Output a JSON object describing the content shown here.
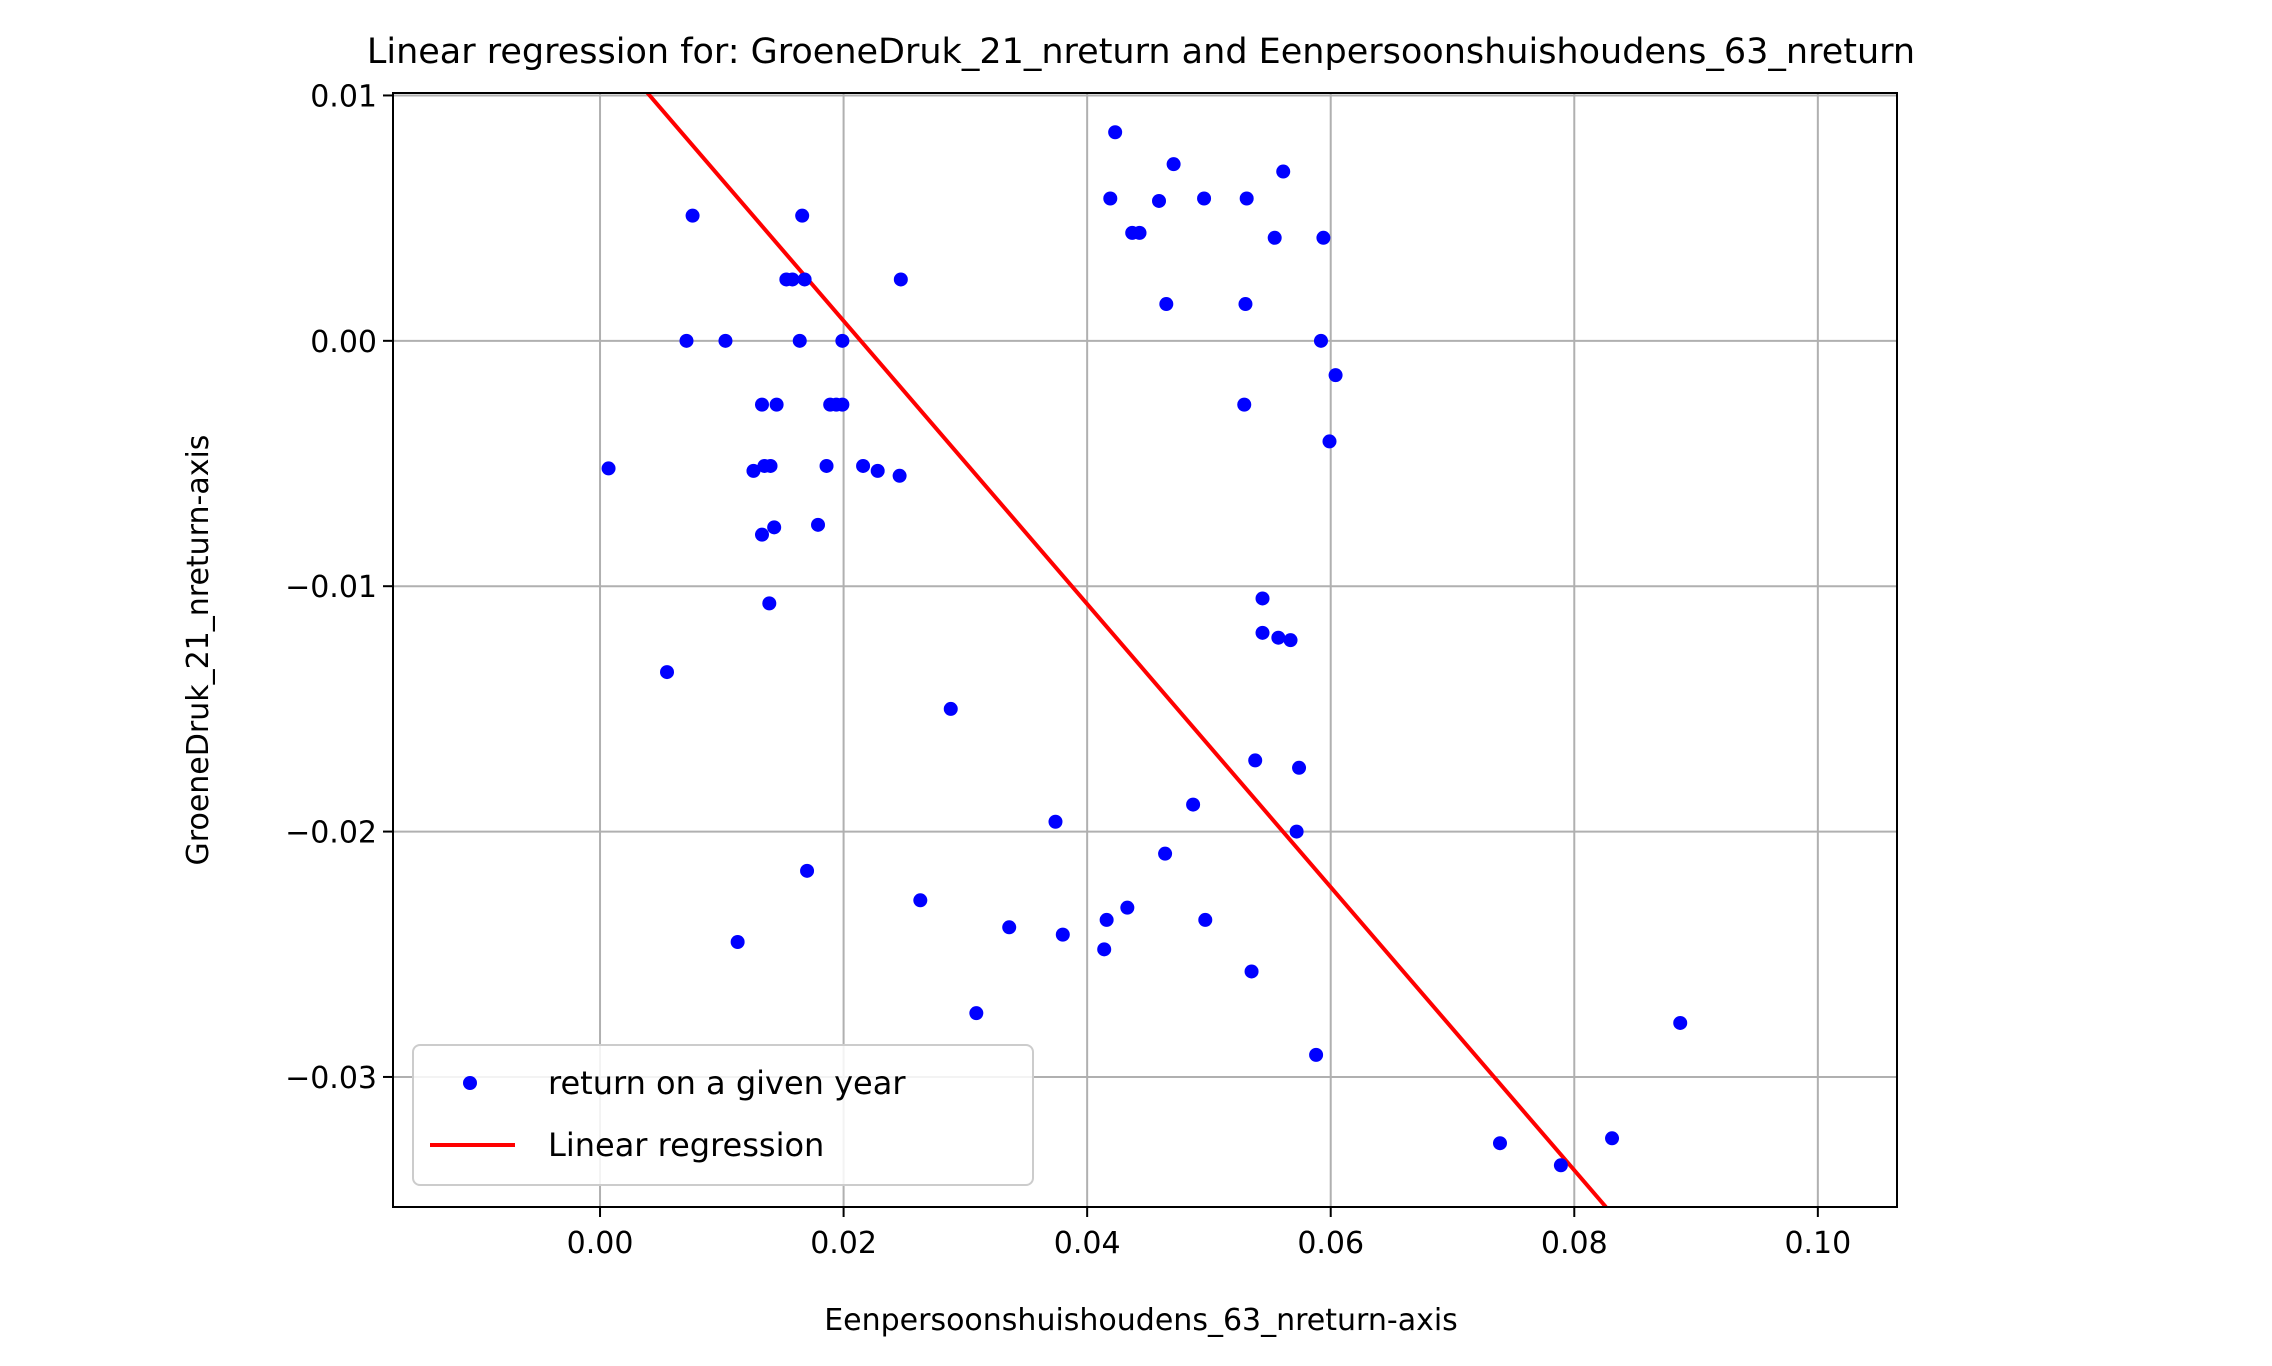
{
  "chart_data": {
    "type": "scatter",
    "title": "Linear regression for: GroeneDruk_21_nreturn and Eenpersoonshuishoudens_63_nreturn",
    "xlabel": "Eenpersoonshuishoudens_63_nreturn-axis",
    "ylabel": "GroeneDruk_21_nreturn-axis",
    "xlim": [
      -0.017,
      0.1065
    ],
    "ylim": [
      -0.0353,
      0.0101
    ],
    "xticks": [
      0.0,
      0.02,
      0.04,
      0.06,
      0.08,
      0.1
    ],
    "xtick_labels": [
      "0.00",
      "0.02",
      "0.04",
      "0.06",
      "0.08",
      "0.10"
    ],
    "yticks": [
      0.01,
      0.0,
      -0.01,
      -0.02,
      -0.03
    ],
    "ytick_labels": [
      "0.01",
      "0.00",
      "−0.01",
      "−0.02",
      "−0.03"
    ],
    "grid": true,
    "legend_position": "lower-left",
    "series": [
      {
        "name": "return on a given year",
        "kind": "scatter",
        "color": "#0000ff",
        "points": [
          {
            "x": 0.0007,
            "y": -0.0052
          },
          {
            "x": 0.0055,
            "y": -0.0135
          },
          {
            "x": 0.0071,
            "y": 0.0
          },
          {
            "x": 0.0076,
            "y": 0.0051
          },
          {
            "x": 0.0103,
            "y": 0.0
          },
          {
            "x": 0.0113,
            "y": -0.0245
          },
          {
            "x": 0.0126,
            "y": -0.0053
          },
          {
            "x": 0.0133,
            "y": -0.0026
          },
          {
            "x": 0.0133,
            "y": -0.0079
          },
          {
            "x": 0.0135,
            "y": -0.0051
          },
          {
            "x": 0.0139,
            "y": -0.0107
          },
          {
            "x": 0.014,
            "y": -0.0051
          },
          {
            "x": 0.0143,
            "y": -0.0076
          },
          {
            "x": 0.0145,
            "y": -0.0026
          },
          {
            "x": 0.0153,
            "y": 0.0025
          },
          {
            "x": 0.0158,
            "y": 0.0025
          },
          {
            "x": 0.0164,
            "y": 0.0
          },
          {
            "x": 0.0166,
            "y": 0.0051
          },
          {
            "x": 0.0168,
            "y": 0.0025
          },
          {
            "x": 0.017,
            "y": -0.0216
          },
          {
            "x": 0.0179,
            "y": -0.0075
          },
          {
            "x": 0.0186,
            "y": -0.0051
          },
          {
            "x": 0.0189,
            "y": -0.0026
          },
          {
            "x": 0.0194,
            "y": -0.0026
          },
          {
            "x": 0.0199,
            "y": -0.0026
          },
          {
            "x": 0.0199,
            "y": 0.0
          },
          {
            "x": 0.0216,
            "y": -0.0051
          },
          {
            "x": 0.0228,
            "y": -0.0053
          },
          {
            "x": 0.0246,
            "y": -0.0055
          },
          {
            "x": 0.0247,
            "y": 0.0025
          },
          {
            "x": 0.0263,
            "y": -0.0228
          },
          {
            "x": 0.0288,
            "y": -0.015
          },
          {
            "x": 0.0309,
            "y": -0.0274
          },
          {
            "x": 0.0336,
            "y": -0.0239
          },
          {
            "x": 0.0374,
            "y": -0.0196
          },
          {
            "x": 0.038,
            "y": -0.0242
          },
          {
            "x": 0.0414,
            "y": -0.0248
          },
          {
            "x": 0.0416,
            "y": -0.0236
          },
          {
            "x": 0.0419,
            "y": 0.0058
          },
          {
            "x": 0.0423,
            "y": 0.0085
          },
          {
            "x": 0.0433,
            "y": -0.0231
          },
          {
            "x": 0.0437,
            "y": 0.0044
          },
          {
            "x": 0.0443,
            "y": 0.0044
          },
          {
            "x": 0.0459,
            "y": 0.0057
          },
          {
            "x": 0.0464,
            "y": -0.0209
          },
          {
            "x": 0.0465,
            "y": 0.0015
          },
          {
            "x": 0.0471,
            "y": 0.0072
          },
          {
            "x": 0.0487,
            "y": -0.0189
          },
          {
            "x": 0.0496,
            "y": 0.0058
          },
          {
            "x": 0.0497,
            "y": -0.0236
          },
          {
            "x": 0.0529,
            "y": -0.0026
          },
          {
            "x": 0.053,
            "y": 0.0015
          },
          {
            "x": 0.0531,
            "y": 0.0058
          },
          {
            "x": 0.0535,
            "y": -0.0257
          },
          {
            "x": 0.0538,
            "y": -0.0171
          },
          {
            "x": 0.0544,
            "y": -0.0105
          },
          {
            "x": 0.0544,
            "y": -0.0119
          },
          {
            "x": 0.0554,
            "y": 0.0042
          },
          {
            "x": 0.0557,
            "y": -0.0121
          },
          {
            "x": 0.0561,
            "y": 0.0069
          },
          {
            "x": 0.0567,
            "y": -0.0122
          },
          {
            "x": 0.0572,
            "y": -0.02
          },
          {
            "x": 0.0574,
            "y": -0.0174
          },
          {
            "x": 0.0588,
            "y": -0.0291
          },
          {
            "x": 0.0592,
            "y": 0.0
          },
          {
            "x": 0.0594,
            "y": 0.0042
          },
          {
            "x": 0.0599,
            "y": -0.0041
          },
          {
            "x": 0.0604,
            "y": -0.0014
          },
          {
            "x": 0.0739,
            "y": -0.0327
          },
          {
            "x": 0.0789,
            "y": -0.0336
          },
          {
            "x": 0.0831,
            "y": -0.0325
          },
          {
            "x": 0.0887,
            "y": -0.0278
          }
        ]
      },
      {
        "name": "Linear regression",
        "kind": "line",
        "color": "#ff0000",
        "points": [
          {
            "x": 0.0039,
            "y": 0.0101
          },
          {
            "x": 0.0826,
            "y": -0.0353
          }
        ]
      }
    ]
  }
}
